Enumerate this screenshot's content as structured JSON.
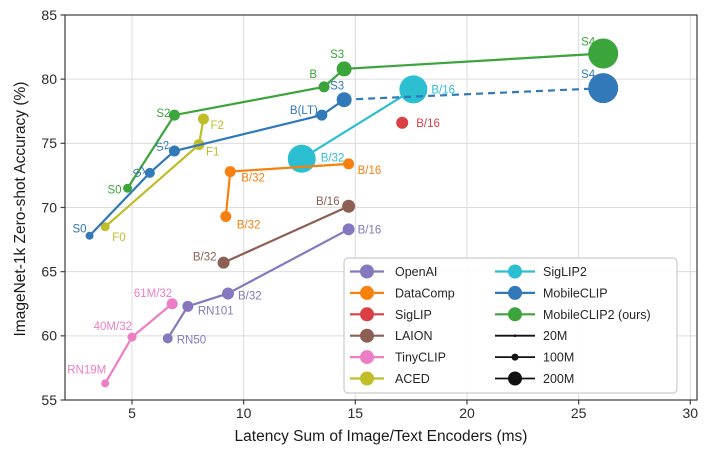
{
  "chart_data": {
    "type": "scatter",
    "title": "",
    "xlabel": "Latency Sum of Image/Text Encoders (ms)",
    "ylabel": "ImageNet-1k Zero-shot Accuracy (%)",
    "xlim": [
      2.0,
      30.3
    ],
    "ylim": [
      55,
      85
    ],
    "xticks": [
      5,
      10,
      15,
      20,
      25,
      30
    ],
    "yticks": [
      55,
      60,
      65,
      70,
      75,
      80,
      85
    ],
    "grid": true,
    "grid_color": "#dcdcdc",
    "spine_color": "#3b3b3b",
    "tick_label_color": "#2b2b2b",
    "annotation_font_px": 11.5,
    "legend_position": "lower right",
    "draw_order": [
      "SigLIP2",
      "OpenAI",
      "SigLIP",
      "LAION",
      "TinyCLIP",
      "ACED",
      "DataComp",
      "MobileCLIP",
      "MobileCLIP2 (ours)"
    ],
    "series": [
      {
        "name": "OpenAI",
        "color": "#8678bf",
        "points": [
          {
            "x": 6.6,
            "y": 59.8,
            "r": 5,
            "label": "RN50",
            "dx": 9,
            "dy": 1,
            "anchor": "start"
          },
          {
            "x": 7.5,
            "y": 62.3,
            "r": 5.5,
            "label": "RN101",
            "dx": 10,
            "dy": 4,
            "anchor": "start"
          },
          {
            "x": 9.3,
            "y": 63.3,
            "r": 6,
            "label": "B/32",
            "dx": 10,
            "dy": 2,
            "anchor": "start"
          },
          {
            "x": 14.7,
            "y": 68.3,
            "r": 6,
            "label": "B/16",
            "dx": 9,
            "dy": 0,
            "anchor": "start"
          }
        ]
      },
      {
        "name": "DataComp",
        "color": "#f8800f",
        "points": [
          {
            "x": 9.2,
            "y": 69.3,
            "r": 5.5,
            "label": "B/32",
            "dx": 11,
            "dy": 8,
            "anchor": "start"
          },
          {
            "x": 9.4,
            "y": 72.8,
            "r": 5.5,
            "label": "B/32",
            "dx": 11,
            "dy": 6,
            "anchor": "start"
          },
          {
            "x": 14.7,
            "y": 73.4,
            "r": 5.5,
            "label": "B/16",
            "dx": 9,
            "dy": 6,
            "anchor": "start"
          }
        ]
      },
      {
        "name": "SigLIP",
        "color": "#db3e43",
        "points": [
          {
            "x": 17.1,
            "y": 76.6,
            "r": 6,
            "label": "B/16",
            "dx": 14,
            "dy": 0,
            "anchor": "start"
          }
        ]
      },
      {
        "name": "LAION",
        "color": "#8c5f54",
        "points": [
          {
            "x": 9.1,
            "y": 65.7,
            "r": 6,
            "label": "B/32",
            "dx": -7,
            "dy": -6,
            "anchor": "end"
          },
          {
            "x": 14.7,
            "y": 70.1,
            "r": 6.5,
            "label": "B/16",
            "dx": -9,
            "dy": -5,
            "anchor": "end"
          }
        ]
      },
      {
        "name": "TinyCLIP",
        "color": "#ed7ec6",
        "points": [
          {
            "x": 3.8,
            "y": 56.3,
            "r": 4,
            "label": "RN19M",
            "dx": 1,
            "dy": -14,
            "anchor": "end"
          },
          {
            "x": 5.0,
            "y": 59.9,
            "r": 4.5,
            "label": "40M/32",
            "dx": 0,
            "dy": -11,
            "anchor": "end"
          },
          {
            "x": 6.8,
            "y": 62.5,
            "r": 5.5,
            "label": "61M/32",
            "dx": 0,
            "dy": -11,
            "anchor": "end"
          }
        ]
      },
      {
        "name": "ACED",
        "color": "#bfbe28",
        "points": [
          {
            "x": 3.8,
            "y": 68.5,
            "r": 4.5,
            "label": "F0",
            "dx": 7,
            "dy": 10,
            "anchor": "start"
          },
          {
            "x": 8.0,
            "y": 74.9,
            "r": 5.5,
            "label": "F1",
            "dx": 7,
            "dy": 7,
            "anchor": "start"
          },
          {
            "x": 8.2,
            "y": 76.9,
            "r": 5.5,
            "label": "F2",
            "dx": 7,
            "dy": 6,
            "anchor": "start"
          }
        ]
      },
      {
        "name": "SigLIP2",
        "color": "#2cbfd2",
        "points": [
          {
            "x": 12.6,
            "y": 73.8,
            "r": 14,
            "label": "B/32",
            "dx": 19,
            "dy": -1,
            "anchor": "start"
          },
          {
            "x": 17.6,
            "y": 79.2,
            "r": 14,
            "label": "B/16",
            "dx": 18,
            "dy": 0,
            "anchor": "start"
          }
        ]
      },
      {
        "name": "MobileCLIP",
        "color": "#3179b8",
        "dash_from_index": 4,
        "points": [
          {
            "x": 3.1,
            "y": 67.8,
            "r": 4,
            "label": "S0",
            "dx": -3,
            "dy": -7,
            "anchor": "end"
          },
          {
            "x": 5.8,
            "y": 72.7,
            "r": 5,
            "label": "S1",
            "dx": -2,
            "dy": -6,
            "anchor": "end",
            "rot": -32
          },
          {
            "x": 6.9,
            "y": 74.4,
            "r": 5.5,
            "label": "S2",
            "dx": -4,
            "dy": -7,
            "anchor": "end",
            "rot": -14
          },
          {
            "x": 13.5,
            "y": 77.2,
            "r": 5.5,
            "label": "B(LT)",
            "dx": -4,
            "dy": -5,
            "anchor": "end"
          },
          {
            "x": 14.5,
            "y": 78.4,
            "r": 7.5,
            "label": "S3",
            "dx": 0,
            "dy": -14,
            "anchor": "end"
          },
          {
            "x": 26.1,
            "y": 79.3,
            "r": 15,
            "label": "S4",
            "dx": -8,
            "dy": -14,
            "anchor": "end"
          }
        ]
      },
      {
        "name": "MobileCLIP2 (ours)",
        "color": "#3ba43b",
        "points": [
          {
            "x": 4.8,
            "y": 71.5,
            "r": 4.5,
            "label": "S0",
            "dx": -6,
            "dy": 1,
            "anchor": "end"
          },
          {
            "x": 6.9,
            "y": 77.2,
            "r": 5.5,
            "label": "S2",
            "dx": -4,
            "dy": -2,
            "anchor": "end"
          },
          {
            "x": 13.6,
            "y": 79.4,
            "r": 5.5,
            "label": "B",
            "dx": -7,
            "dy": -13,
            "anchor": "end"
          },
          {
            "x": 14.5,
            "y": 80.8,
            "r": 7.5,
            "label": "S3",
            "dx": 0,
            "dy": -15,
            "anchor": "end"
          },
          {
            "x": 26.1,
            "y": 82.0,
            "r": 15,
            "label": "S4",
            "dx": -8,
            "dy": -12,
            "anchor": "end"
          }
        ]
      }
    ],
    "legend": {
      "column1": [
        "OpenAI",
        "DataComp",
        "SigLIP",
        "LAION",
        "TinyCLIP",
        "ACED"
      ],
      "column2": [
        "SigLIP2",
        "MobileCLIP",
        "MobileCLIP2 (ours)"
      ],
      "sizes": [
        {
          "label": "20M",
          "r": 1.3
        },
        {
          "label": "100M",
          "r": 3.5
        },
        {
          "label": "200M",
          "r": 7
        }
      ],
      "text_color": "#262626",
      "size_marker_color": "#111111"
    }
  }
}
